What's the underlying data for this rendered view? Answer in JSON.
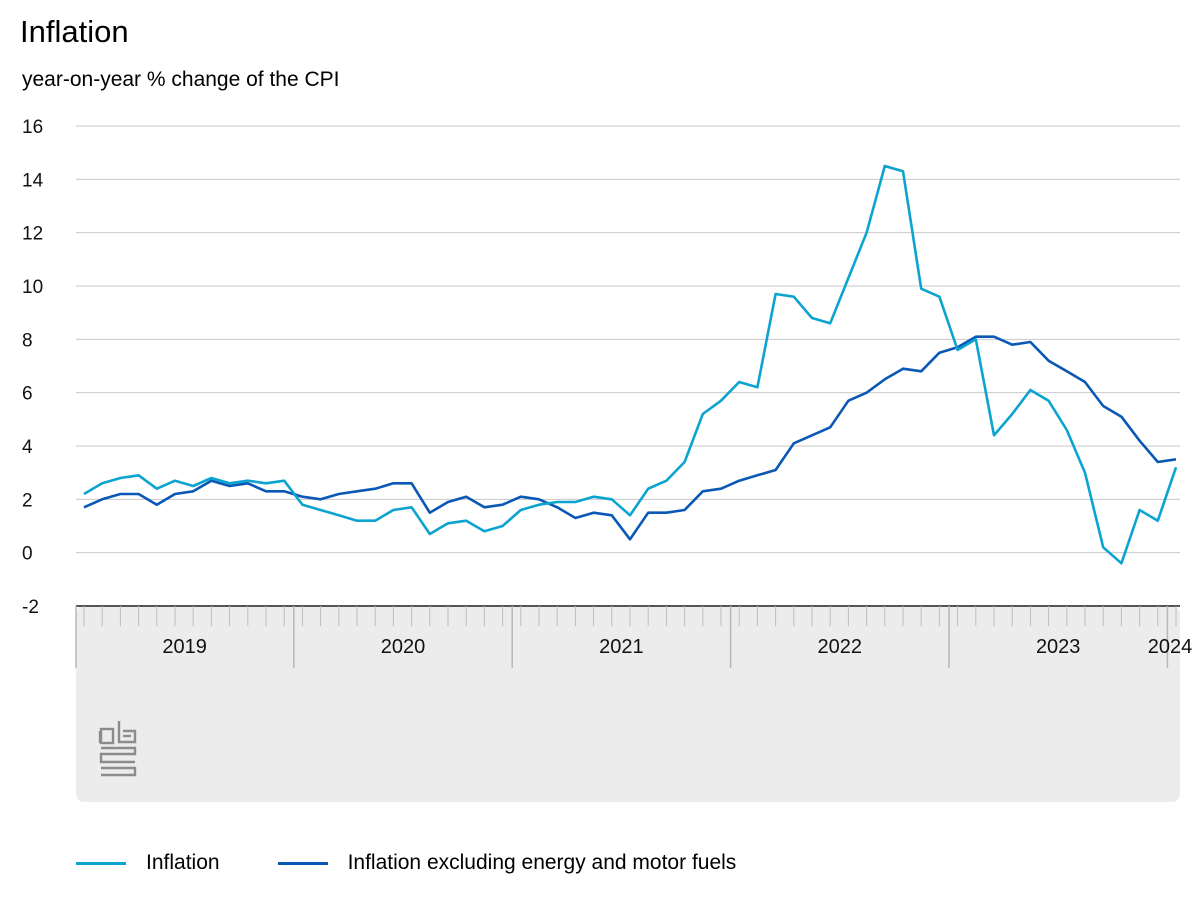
{
  "title": "Inflation",
  "subtitle": "year-on-year % change of the CPI",
  "colors": {
    "inflation": "#0ba4d1",
    "core": "#0a58b5",
    "grid": "#c9c9c9",
    "panel": "#ececec"
  },
  "logo": "cbs",
  "chart_data": {
    "type": "line",
    "title": "Inflation",
    "subtitle": "year-on-year % change of the CPI",
    "xlabel": "",
    "ylabel": "",
    "ylim": [
      -2,
      16
    ],
    "yticks": [
      -2,
      0,
      2,
      4,
      6,
      8,
      10,
      12,
      14,
      16
    ],
    "year_labels": [
      "2019",
      "2020",
      "2021",
      "2022",
      "2023",
      "2024"
    ],
    "x_period": "monthly, Jan 2019 - Jan 2024",
    "grid": true,
    "legend_position": "bottom",
    "series": [
      {
        "name": "Inflation",
        "values": [
          2.2,
          2.6,
          2.8,
          2.9,
          2.4,
          2.7,
          2.5,
          2.8,
          2.6,
          2.7,
          2.6,
          2.7,
          1.8,
          1.6,
          1.4,
          1.2,
          1.2,
          1.6,
          1.7,
          0.7,
          1.1,
          1.2,
          0.8,
          1.0,
          1.6,
          1.8,
          1.9,
          1.9,
          2.1,
          2.0,
          1.4,
          2.4,
          2.7,
          3.4,
          5.2,
          5.7,
          6.4,
          6.2,
          9.7,
          9.6,
          8.8,
          8.6,
          10.3,
          12.0,
          14.5,
          14.3,
          9.9,
          9.6,
          7.6,
          8.0,
          4.4,
          5.2,
          6.1,
          5.7,
          4.6,
          3.0,
          0.2,
          -0.4,
          1.6,
          1.2,
          3.2
        ]
      },
      {
        "name": "Inflation excluding energy and motor fuels",
        "values": [
          1.7,
          2.0,
          2.2,
          2.2,
          1.8,
          2.2,
          2.3,
          2.7,
          2.5,
          2.6,
          2.3,
          2.3,
          2.1,
          2.0,
          2.2,
          2.3,
          2.4,
          2.6,
          2.6,
          1.5,
          1.9,
          2.1,
          1.7,
          1.8,
          2.1,
          2.0,
          1.7,
          1.3,
          1.5,
          1.4,
          0.5,
          1.5,
          1.5,
          1.6,
          2.3,
          2.4,
          2.7,
          2.9,
          3.1,
          4.1,
          4.4,
          4.7,
          5.7,
          6.0,
          6.5,
          6.9,
          6.8,
          7.5,
          7.7,
          8.1,
          8.1,
          7.8,
          7.9,
          7.2,
          6.8,
          6.4,
          5.5,
          5.1,
          4.2,
          3.4,
          3.5
        ]
      }
    ]
  }
}
